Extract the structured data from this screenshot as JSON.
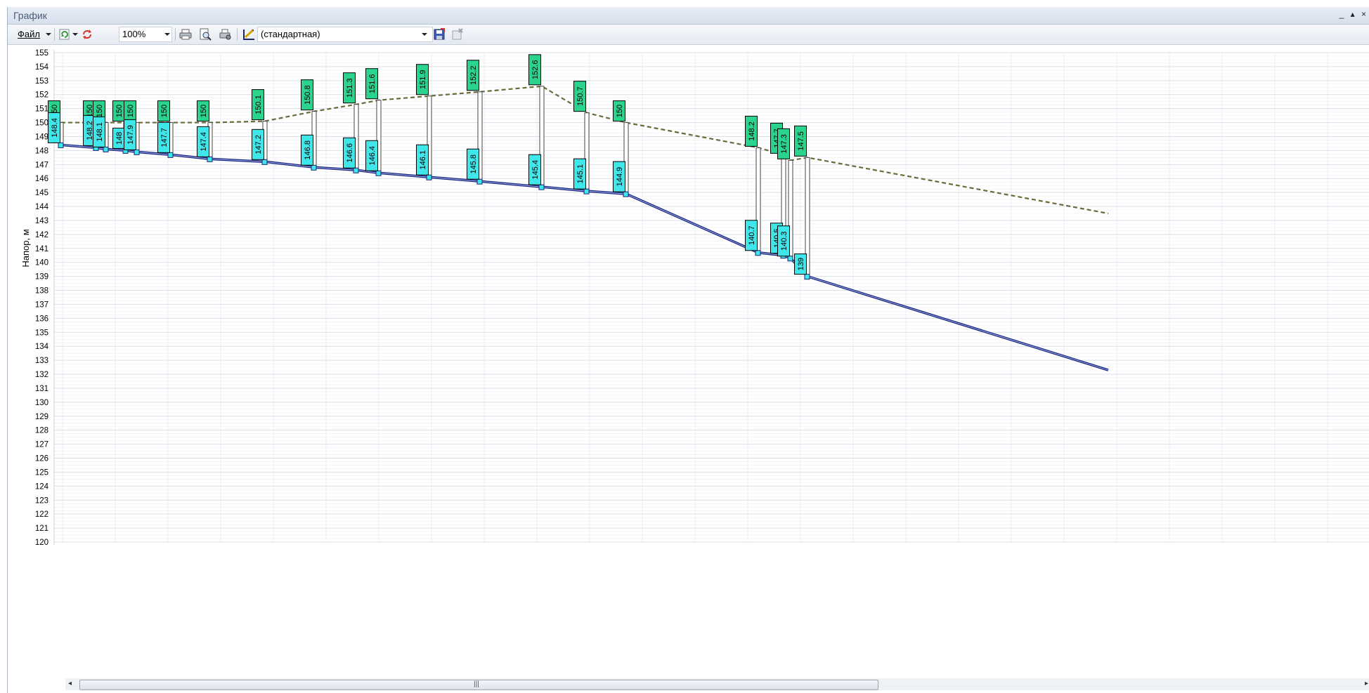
{
  "window": {
    "title": "График",
    "controls": "_ ▴ ×"
  },
  "toolbar": {
    "file_label": "Файл",
    "zoom_value": "100%",
    "scheme_value": "(стандартная)"
  },
  "icons": {
    "refresh": "refresh-icon",
    "reload": "reload-icon",
    "print": "printer-icon",
    "preview": "print-preview-icon",
    "print_setup": "print-setup-icon",
    "chart_settings": "chart-settings-icon",
    "save": "save-icon",
    "delete": "delete-icon"
  },
  "colors": {
    "head_box": "#2bd48c",
    "ground_box": "#3fe6ea",
    "head_line": "#6b6b3a",
    "pipe_line": "#1a237e",
    "grid": "#d9dfe8"
  },
  "chart_data": {
    "type": "line",
    "ylabel": "Напор, м",
    "ylim": [
      120,
      155
    ],
    "y_ticks": [
      120,
      121,
      122,
      123,
      124,
      125,
      126,
      127,
      128,
      129,
      130,
      131,
      132,
      133,
      134,
      135,
      136,
      137,
      138,
      139,
      140,
      141,
      142,
      143,
      144,
      145,
      146,
      147,
      148,
      149,
      150,
      151,
      152,
      153,
      154,
      155
    ],
    "nodes": [
      {
        "x": 0,
        "head": 150,
        "ground": 148.4
      },
      {
        "x": 50,
        "head": 150,
        "ground": 148.2
      },
      {
        "x": 64,
        "head": 150,
        "ground": 148.1
      },
      {
        "x": 92,
        "head": 150,
        "ground": 148
      },
      {
        "x": 108,
        "head": 150,
        "ground": 147.9
      },
      {
        "x": 156,
        "head": 150,
        "ground": 147.7
      },
      {
        "x": 212,
        "head": 150,
        "ground": 147.4
      },
      {
        "x": 290,
        "head": 150.1,
        "ground": 147.2
      },
      {
        "x": 360,
        "head": 150.8,
        "ground": 146.8
      },
      {
        "x": 420,
        "head": 151.3,
        "ground": 146.6
      },
      {
        "x": 452,
        "head": 151.6,
        "ground": 146.4
      },
      {
        "x": 524,
        "head": 151.9,
        "ground": 146.1
      },
      {
        "x": 596,
        "head": 152.2,
        "ground": 145.8
      },
      {
        "x": 684,
        "head": 152.6,
        "ground": 145.4
      },
      {
        "x": 748,
        "head": 150.7,
        "ground": 145.1
      },
      {
        "x": 804,
        "head": 150,
        "ground": 144.9
      },
      {
        "x": 992,
        "head": 148.2,
        "ground": 140.7
      },
      {
        "x": 1028,
        "head": 147.7,
        "ground": 140.5
      },
      {
        "x": 1038,
        "head": 147.3,
        "ground": 140.3
      },
      {
        "x": 1062,
        "head": 147.5,
        "ground": 139
      }
    ],
    "tail": {
      "x": 1490,
      "head": 143.5,
      "ground": 132.3
    }
  }
}
